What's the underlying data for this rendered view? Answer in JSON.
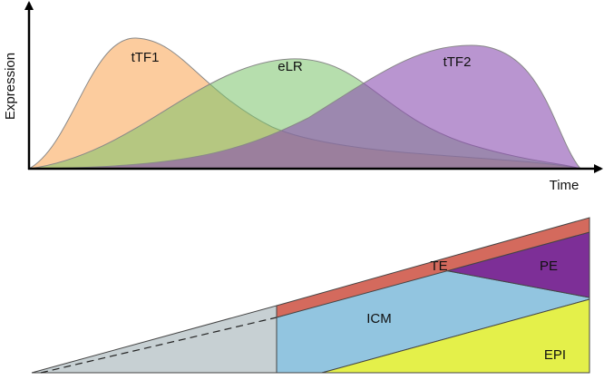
{
  "axes": {
    "y_label": "Expression",
    "x_label": "Time"
  },
  "curves": [
    {
      "label": "tTF1"
    },
    {
      "label": "eLR"
    },
    {
      "label": "tTF2"
    }
  ],
  "regions": [
    {
      "label": "TE"
    },
    {
      "label": "PE"
    },
    {
      "label": "ICM"
    },
    {
      "label": "EPI"
    }
  ]
}
